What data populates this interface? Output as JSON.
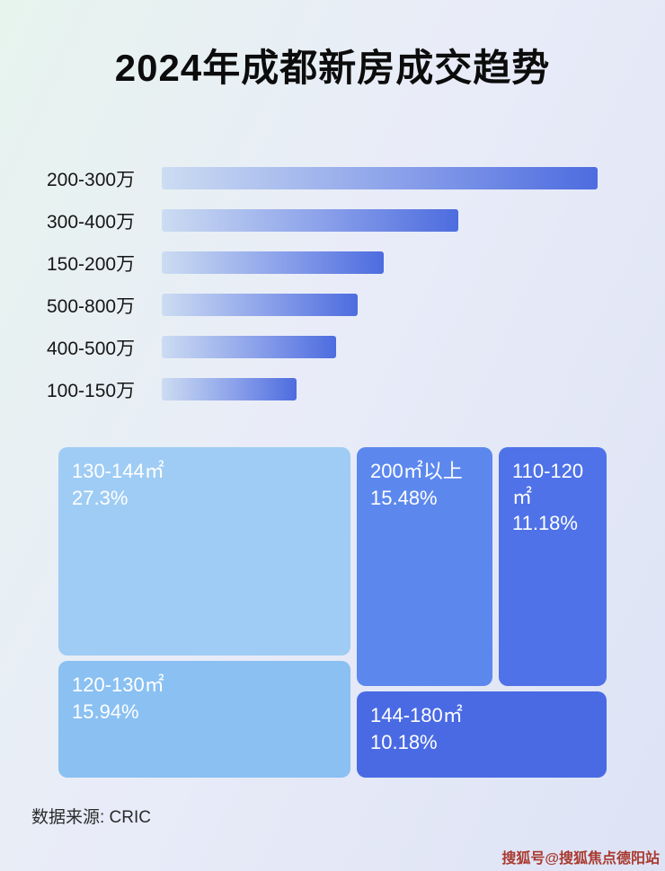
{
  "page": {
    "title": "2024年成都新房成交趋势",
    "source_note": "数据来源: CRIC",
    "watermark": "搜狐号@搜狐焦点德阳站",
    "background_colors": [
      "#e7f4ee",
      "#e9ecf8",
      "#dde3f5"
    ],
    "bar_gradient": [
      "#ccdcf2",
      "#4d6cdf"
    ]
  },
  "chart_data": [
    {
      "type": "bar",
      "orientation": "horizontal",
      "title": "2024年成都新房成交趋势",
      "value_note": "bar lengths are unlabeled in the image; values are estimated relative lengths, % of the longest bar",
      "categories": [
        "200-300万",
        "300-400万",
        "150-200万",
        "500-800万",
        "400-500万",
        "100-150万"
      ],
      "values": [
        100,
        68,
        51,
        45,
        40,
        31
      ],
      "legend": "none",
      "grid": false
    },
    {
      "type": "treemap",
      "value_unit": "%",
      "items": [
        {
          "label": "130-144㎡",
          "value": 27.3,
          "value_label": "27.3%",
          "color": "#9fccf4"
        },
        {
          "label": "200㎡以上",
          "value": 15.48,
          "value_label": "15.48%",
          "color": "#5c88ee"
        },
        {
          "label": "110-120㎡",
          "value": 11.18,
          "value_label": "11.18%",
          "color": "#4f72e8"
        },
        {
          "label": "120-130㎡",
          "value": 15.94,
          "value_label": "15.94%",
          "color": "#8ac0f2"
        },
        {
          "label": "144-180㎡",
          "value": 10.18,
          "value_label": "10.18%",
          "color": "#4a6ae4"
        }
      ]
    }
  ]
}
